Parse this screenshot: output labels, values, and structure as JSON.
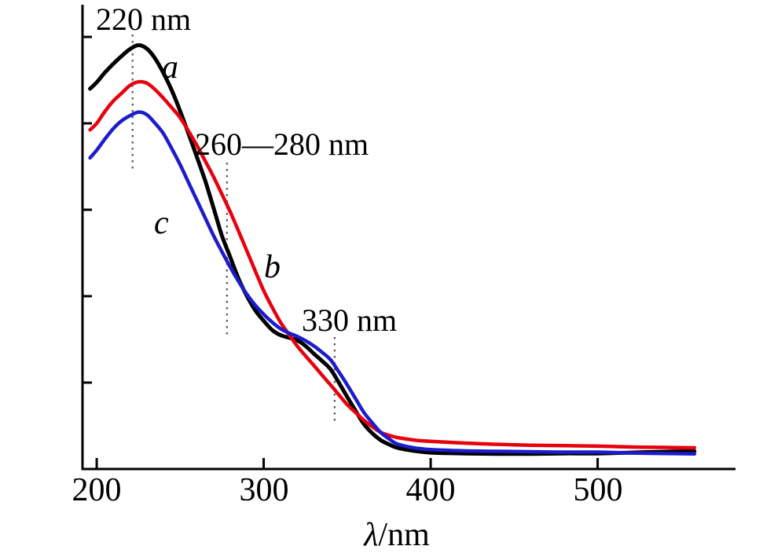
{
  "figure": {
    "background": "#ffffff"
  },
  "chart_data": {
    "type": "line",
    "title": "",
    "xlabel_italic": "λ",
    "xlabel_upright": "/nm",
    "ylabel": "",
    "x_axis": {
      "unit": "nm",
      "tick_values": [
        200,
        300,
        400,
        500
      ],
      "range_nm": [
        191.5,
        582
      ]
    },
    "y_axis": {
      "unit": "absorbance (a.u.)",
      "labels_shown": false,
      "range_au": [
        0,
        1.07
      ]
    },
    "x_tick_labels": [
      "200",
      "300",
      "400",
      "500"
    ],
    "x_nm": [
      196,
      200,
      205,
      210,
      215,
      220,
      225,
      230,
      235,
      240,
      245,
      250,
      255,
      260,
      265,
      270,
      275,
      280,
      285,
      290,
      295,
      300,
      305,
      310,
      315,
      320,
      325,
      330,
      335,
      340,
      345,
      350,
      355,
      360,
      365,
      370,
      375,
      380,
      390,
      400,
      420,
      440,
      460,
      480,
      500,
      520,
      540,
      558
    ],
    "series": [
      {
        "name": "a",
        "color": "#000000",
        "values": [
          0.88,
          0.895,
          0.918,
          0.938,
          0.956,
          0.972,
          0.981,
          0.973,
          0.95,
          0.916,
          0.876,
          0.828,
          0.776,
          0.722,
          0.667,
          0.604,
          0.54,
          0.49,
          0.44,
          0.4,
          0.367,
          0.343,
          0.322,
          0.31,
          0.304,
          0.298,
          0.285,
          0.267,
          0.25,
          0.231,
          0.2,
          0.167,
          0.135,
          0.104,
          0.083,
          0.067,
          0.057,
          0.049,
          0.042,
          0.038,
          0.036,
          0.035,
          0.035,
          0.036,
          0.036,
          0.038,
          0.04,
          0.041
        ]
      },
      {
        "name": "b",
        "color": "#e8000d",
        "values": [
          0.785,
          0.8,
          0.828,
          0.852,
          0.87,
          0.888,
          0.896,
          0.893,
          0.878,
          0.858,
          0.836,
          0.813,
          0.782,
          0.749,
          0.713,
          0.676,
          0.636,
          0.595,
          0.55,
          0.504,
          0.458,
          0.413,
          0.375,
          0.34,
          0.312,
          0.285,
          0.262,
          0.24,
          0.217,
          0.195,
          0.172,
          0.149,
          0.131,
          0.113,
          0.098,
          0.085,
          0.078,
          0.073,
          0.067,
          0.064,
          0.06,
          0.057,
          0.055,
          0.054,
          0.053,
          0.051,
          0.05,
          0.049
        ]
      },
      {
        "name": "c",
        "color": "#1c1ccd",
        "values": [
          0.72,
          0.738,
          0.764,
          0.788,
          0.806,
          0.818,
          0.826,
          0.82,
          0.8,
          0.776,
          0.741,
          0.704,
          0.663,
          0.622,
          0.581,
          0.54,
          0.503,
          0.467,
          0.434,
          0.404,
          0.379,
          0.358,
          0.34,
          0.325,
          0.315,
          0.307,
          0.297,
          0.285,
          0.27,
          0.253,
          0.225,
          0.195,
          0.163,
          0.131,
          0.107,
          0.085,
          0.07,
          0.058,
          0.049,
          0.045,
          0.042,
          0.041,
          0.04,
          0.039,
          0.039,
          0.037,
          0.036,
          0.035
        ]
      }
    ],
    "annotations": [
      {
        "text": "220 nm",
        "x_nm": 221.5
      },
      {
        "text": "260—280 nm",
        "x_nm": 278
      },
      {
        "text": "330 nm",
        "x_nm": 342.5
      }
    ],
    "marker_line_color": "#555555",
    "legend_position": "none",
    "grid": false
  }
}
